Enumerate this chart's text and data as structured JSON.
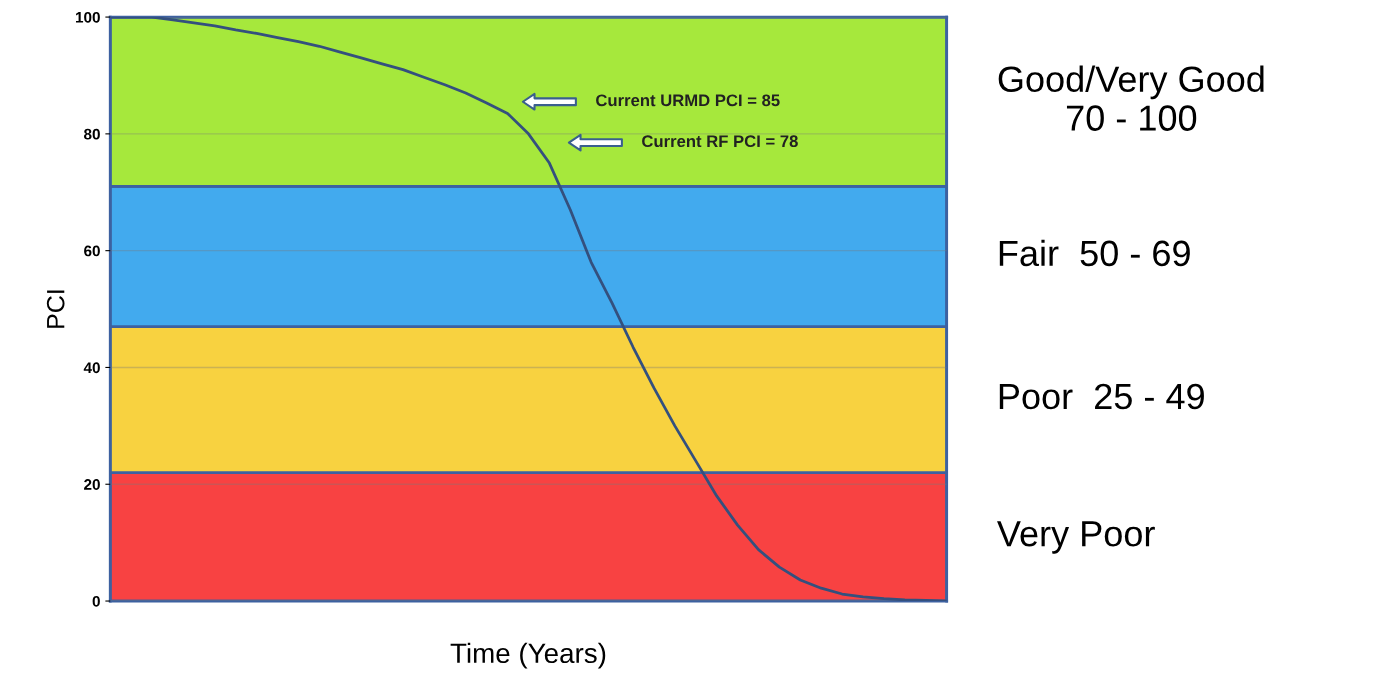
{
  "chart_data": {
    "type": "line",
    "xlabel": "Time (Years)",
    "ylabel": "PCI",
    "categories": [
      null,
      null,
      null,
      null,
      null,
      null,
      null,
      null,
      null,
      null,
      null,
      null,
      null,
      null,
      null,
      null,
      null,
      null,
      null,
      null,
      null,
      null,
      null,
      null,
      null,
      null,
      null,
      null,
      null,
      null,
      null,
      null,
      null,
      null,
      null,
      null,
      null,
      null,
      null,
      null,
      null
    ],
    "series": [
      {
        "color": "#34507e",
        "values": [
          100,
          100,
          100,
          99.5,
          99,
          98.5,
          97.8,
          97.2,
          96.5,
          95.8,
          95,
          94,
          93,
          92,
          91,
          89.7,
          88.4,
          87,
          85.3,
          83.5,
          80,
          75,
          67,
          58,
          51,
          43.5,
          36.5,
          30,
          24,
          18,
          13,
          8.8,
          5.8,
          3.6,
          2.2,
          1.2,
          0.7,
          0.4,
          0.2,
          0.1,
          0
        ]
      }
    ],
    "ylim": [
      0,
      100
    ],
    "yticks": [
      0,
      20,
      40,
      60,
      80,
      100
    ],
    "grid": "y",
    "tick_labels": "y",
    "bands": [
      {
        "axis": "y",
        "from": 0,
        "to": 22,
        "label": "Very Poor",
        "color": "#f84242"
      },
      {
        "axis": "y",
        "from": 22,
        "to": 47,
        "label": "Poor  25 - 49",
        "color": "#f8d240"
      },
      {
        "axis": "y",
        "from": 47,
        "to": 71,
        "label": "Fair  50 - 69",
        "color": "#42aaee"
      },
      {
        "axis": "y",
        "from": 71,
        "to": 100,
        "label": "Good/Very Good\n70 - 100",
        "color": "#a6e83c"
      }
    ],
    "annotations": [
      "Current URMD PCI = 85",
      "Current RF PCI = 78"
    ]
  }
}
